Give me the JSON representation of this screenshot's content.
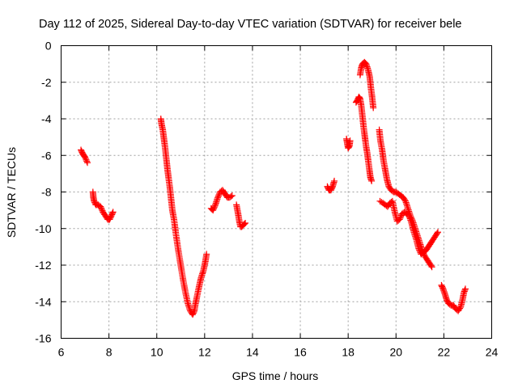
{
  "chart_data": {
    "type": "scatter",
    "title": "Day 112 of 2025, Sidereal Day-to-day VTEC variation (SDTVAR) for receiver bele",
    "xlabel": "GPS time / hours",
    "ylabel": "SDTVAR / TECUs",
    "xlim": [
      6,
      24
    ],
    "ylim": [
      -16,
      0
    ],
    "xticks": [
      "6",
      "8",
      "10",
      "12",
      "14",
      "16",
      "18",
      "20",
      "22",
      "24"
    ],
    "yticks": [
      "0",
      "-2",
      "-4",
      "-6",
      "-8",
      "-10",
      "-12",
      "-14",
      "-16"
    ],
    "grid": true,
    "marker": "+",
    "color": "#ff0000",
    "series": [
      {
        "name": "SDTVAR",
        "segments": [
          [
            [
              6.83,
              -5.7
            ],
            [
              6.9,
              -5.9
            ],
            [
              6.95,
              -6.0
            ],
            [
              7.0,
              -6.1
            ],
            [
              7.05,
              -6.25
            ],
            [
              7.1,
              -6.4
            ]
          ],
          [
            [
              7.33,
              -8.0
            ],
            [
              7.35,
              -8.3
            ],
            [
              7.38,
              -8.5
            ],
            [
              7.45,
              -8.7
            ],
            [
              7.55,
              -8.7
            ],
            [
              7.65,
              -8.8
            ],
            [
              7.75,
              -9.1
            ],
            [
              7.85,
              -9.3
            ],
            [
              7.95,
              -9.5
            ],
            [
              8.03,
              -9.5
            ],
            [
              8.1,
              -9.3
            ],
            [
              8.17,
              -9.1
            ]
          ],
          [
            [
              10.17,
              -4.0
            ],
            [
              10.2,
              -4.3
            ],
            [
              10.25,
              -4.6
            ],
            [
              10.3,
              -5.1
            ],
            [
              10.35,
              -5.6
            ],
            [
              10.4,
              -6.2
            ],
            [
              10.45,
              -6.8
            ],
            [
              10.5,
              -7.3
            ],
            [
              10.55,
              -7.8
            ],
            [
              10.6,
              -8.4
            ],
            [
              10.65,
              -9.0
            ],
            [
              10.72,
              -9.5
            ],
            [
              10.8,
              -10.3
            ],
            [
              10.9,
              -11.2
            ],
            [
              11.0,
              -12.0
            ],
            [
              11.1,
              -12.8
            ],
            [
              11.2,
              -13.5
            ],
            [
              11.3,
              -14.1
            ],
            [
              11.4,
              -14.5
            ],
            [
              11.5,
              -14.7
            ],
            [
              11.57,
              -14.5
            ],
            [
              11.62,
              -14.1
            ],
            [
              11.7,
              -13.6
            ],
            [
              11.78,
              -13.1
            ],
            [
              11.85,
              -12.7
            ],
            [
              11.95,
              -12.3
            ],
            [
              12.03,
              -11.8
            ],
            [
              12.08,
              -11.4
            ]
          ],
          [
            [
              12.27,
              -8.9
            ],
            [
              12.35,
              -9.0
            ],
            [
              12.45,
              -8.7
            ],
            [
              12.55,
              -8.3
            ],
            [
              12.65,
              -8.0
            ],
            [
              12.75,
              -7.9
            ],
            [
              12.85,
              -8.1
            ],
            [
              12.95,
              -8.3
            ],
            [
              13.05,
              -8.3
            ],
            [
              13.15,
              -8.2
            ]
          ],
          [
            [
              13.33,
              -8.7
            ],
            [
              13.4,
              -9.2
            ],
            [
              13.45,
              -9.6
            ],
            [
              13.5,
              -9.9
            ],
            [
              13.55,
              -9.9
            ],
            [
              13.62,
              -9.8
            ],
            [
              13.7,
              -9.7
            ]
          ],
          [
            [
              17.13,
              -7.7
            ],
            [
              17.2,
              -7.9
            ],
            [
              17.28,
              -7.9
            ],
            [
              17.35,
              -7.7
            ],
            [
              17.42,
              -7.4
            ]
          ],
          [
            [
              17.93,
              -5.1
            ],
            [
              17.97,
              -5.4
            ],
            [
              18.0,
              -5.6
            ],
            [
              18.05,
              -5.5
            ],
            [
              18.08,
              -5.2
            ]
          ],
          [
            [
              18.33,
              -3.1
            ],
            [
              18.38,
              -3.0
            ],
            [
              18.45,
              -2.8
            ],
            [
              18.5,
              -2.9
            ],
            [
              18.55,
              -3.3
            ],
            [
              18.6,
              -3.9
            ],
            [
              18.65,
              -4.5
            ],
            [
              18.7,
              -5.0
            ],
            [
              18.75,
              -5.5
            ],
            [
              18.8,
              -5.9
            ],
            [
              18.85,
              -6.4
            ],
            [
              18.9,
              -6.9
            ],
            [
              18.93,
              -7.2
            ],
            [
              18.98,
              -7.4
            ]
          ],
          [
            [
              18.5,
              -1.6
            ],
            [
              18.55,
              -1.2
            ],
            [
              18.6,
              -1.0
            ],
            [
              18.68,
              -0.9
            ],
            [
              18.75,
              -1.0
            ],
            [
              18.83,
              -1.3
            ],
            [
              18.9,
              -1.7
            ],
            [
              18.95,
              -2.3
            ],
            [
              19.0,
              -2.8
            ],
            [
              19.05,
              -3.4
            ]
          ],
          [
            [
              19.3,
              -4.6
            ],
            [
              19.35,
              -5.2
            ],
            [
              19.42,
              -5.7
            ],
            [
              19.48,
              -6.3
            ],
            [
              19.55,
              -6.8
            ],
            [
              19.62,
              -7.3
            ],
            [
              19.7,
              -7.7
            ],
            [
              19.8,
              -7.9
            ],
            [
              19.9,
              -8.0
            ],
            [
              20.0,
              -8.0
            ],
            [
              20.1,
              -8.1
            ],
            [
              20.2,
              -8.2
            ],
            [
              20.3,
              -8.3
            ],
            [
              20.4,
              -8.5
            ],
            [
              20.5,
              -8.9
            ],
            [
              20.6,
              -9.3
            ],
            [
              20.7,
              -9.6
            ],
            [
              20.8,
              -10.0
            ],
            [
              20.9,
              -10.4
            ],
            [
              21.0,
              -10.8
            ],
            [
              21.1,
              -11.2
            ],
            [
              21.2,
              -11.5
            ],
            [
              21.3,
              -11.7
            ],
            [
              21.4,
              -11.9
            ],
            [
              21.5,
              -12.1
            ]
          ],
          [
            [
              19.33,
              -8.5
            ],
            [
              19.45,
              -8.6
            ],
            [
              19.55,
              -8.7
            ],
            [
              19.65,
              -8.8
            ],
            [
              19.75,
              -8.6
            ],
            [
              19.85,
              -8.5
            ],
            [
              19.95,
              -9.1
            ],
            [
              20.05,
              -9.6
            ],
            [
              20.15,
              -9.5
            ],
            [
              20.25,
              -9.2
            ],
            [
              20.35,
              -9.1
            ],
            [
              20.45,
              -9.2
            ],
            [
              20.55,
              -9.3
            ],
            [
              20.65,
              -9.7
            ],
            [
              20.75,
              -10.2
            ],
            [
              20.85,
              -10.6
            ],
            [
              20.95,
              -11.1
            ],
            [
              21.05,
              -11.4
            ],
            [
              21.15,
              -11.3
            ],
            [
              21.25,
              -11.2
            ],
            [
              21.35,
              -11.0
            ],
            [
              21.45,
              -10.8
            ],
            [
              21.55,
              -10.6
            ],
            [
              21.65,
              -10.4
            ],
            [
              21.75,
              -10.2
            ]
          ],
          [
            [
              21.9,
              -13.1
            ],
            [
              21.97,
              -13.3
            ],
            [
              22.05,
              -13.6
            ],
            [
              22.12,
              -13.9
            ],
            [
              22.2,
              -14.1
            ],
            [
              22.3,
              -14.2
            ],
            [
              22.4,
              -14.2
            ],
            [
              22.5,
              -14.4
            ],
            [
              22.6,
              -14.5
            ],
            [
              22.7,
              -14.3
            ],
            [
              22.78,
              -13.9
            ],
            [
              22.84,
              -13.5
            ],
            [
              22.9,
              -13.3
            ]
          ]
        ]
      }
    ]
  }
}
